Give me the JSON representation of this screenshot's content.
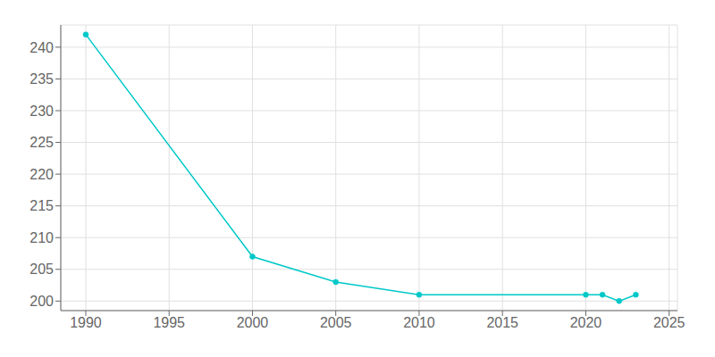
{
  "chart_data": {
    "type": "line",
    "x": [
      1990,
      2000,
      2005,
      2010,
      2020,
      2021,
      2022,
      2023
    ],
    "values": [
      242,
      207,
      203,
      201,
      201,
      201,
      200,
      201
    ],
    "color": "#00C8C8",
    "marker": "circle",
    "xlim": [
      1988.5,
      2025.5
    ],
    "ylim": [
      198.5,
      243.5
    ],
    "xticks": [
      1990,
      1995,
      2000,
      2005,
      2010,
      2015,
      2020,
      2025
    ],
    "yticks": [
      200,
      205,
      210,
      215,
      220,
      225,
      230,
      235,
      240
    ],
    "grid": true
  }
}
